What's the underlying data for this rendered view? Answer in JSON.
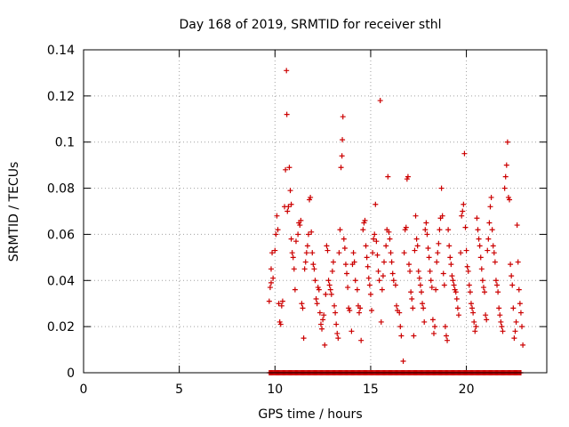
{
  "chart_data": {
    "type": "scatter",
    "title": "Day 168 of 2019, SRMTID for receiver sthl",
    "xlabel": "GPS time / hours",
    "ylabel": "SRMTID / TECUs",
    "xlim": [
      0,
      24.2
    ],
    "ylim": [
      0,
      0.14
    ],
    "xticks": [
      0,
      5,
      10,
      15,
      20
    ],
    "yticks": [
      0,
      0.02,
      0.04,
      0.06,
      0.08,
      0.1,
      0.12,
      0.14
    ],
    "xtick_labels": [
      "0",
      "5",
      "10",
      "15",
      "20"
    ],
    "ytick_labels": [
      "0",
      "0.02",
      "0.04",
      "0.06",
      "0.08",
      "0.1",
      "0.12",
      "0.14"
    ],
    "grid": true,
    "marker": "+",
    "color": "#cc0000",
    "series": [
      {
        "name": "SRMTID",
        "points": [
          [
            9.7,
            0.031
          ],
          [
            9.75,
            0.037
          ],
          [
            9.8,
            0.039
          ],
          [
            9.8,
            0.045
          ],
          [
            9.85,
            0.052
          ],
          [
            9.9,
            0.041
          ],
          [
            10.0,
            0.053
          ],
          [
            10.05,
            0.06
          ],
          [
            10.1,
            0.068
          ],
          [
            10.15,
            0.062
          ],
          [
            10.2,
            0.03
          ],
          [
            10.25,
            0.022
          ],
          [
            10.3,
            0.021
          ],
          [
            10.35,
            0.029
          ],
          [
            10.4,
            0.031
          ],
          [
            10.5,
            0.072
          ],
          [
            10.55,
            0.088
          ],
          [
            10.6,
            0.131
          ],
          [
            10.62,
            0.112
          ],
          [
            10.65,
            0.07
          ],
          [
            10.7,
            0.072
          ],
          [
            10.75,
            0.089
          ],
          [
            10.8,
            0.079
          ],
          [
            10.85,
            0.073
          ],
          [
            10.85,
            0.058
          ],
          [
            10.9,
            0.052
          ],
          [
            10.95,
            0.05
          ],
          [
            11.0,
            0.045
          ],
          [
            11.05,
            0.036
          ],
          [
            11.1,
            0.057
          ],
          [
            11.2,
            0.06
          ],
          [
            11.25,
            0.065
          ],
          [
            11.3,
            0.064
          ],
          [
            11.35,
            0.066
          ],
          [
            11.4,
            0.03
          ],
          [
            11.45,
            0.028
          ],
          [
            11.5,
            0.015
          ],
          [
            11.55,
            0.045
          ],
          [
            11.6,
            0.048
          ],
          [
            11.65,
            0.052
          ],
          [
            11.7,
            0.055
          ],
          [
            11.75,
            0.06
          ],
          [
            11.8,
            0.075
          ],
          [
            11.85,
            0.076
          ],
          [
            11.9,
            0.061
          ],
          [
            11.95,
            0.052
          ],
          [
            12.0,
            0.047
          ],
          [
            12.05,
            0.045
          ],
          [
            12.1,
            0.04
          ],
          [
            12.15,
            0.032
          ],
          [
            12.2,
            0.03
          ],
          [
            12.25,
            0.037
          ],
          [
            12.3,
            0.036
          ],
          [
            12.35,
            0.026
          ],
          [
            12.4,
            0.021
          ],
          [
            12.45,
            0.019
          ],
          [
            12.5,
            0.023
          ],
          [
            12.55,
            0.025
          ],
          [
            12.6,
            0.012
          ],
          [
            12.65,
            0.034
          ],
          [
            12.7,
            0.055
          ],
          [
            12.75,
            0.053
          ],
          [
            12.8,
            0.04
          ],
          [
            12.85,
            0.038
          ],
          [
            12.9,
            0.036
          ],
          [
            12.95,
            0.034
          ],
          [
            13.0,
            0.044
          ],
          [
            13.05,
            0.048
          ],
          [
            13.1,
            0.029
          ],
          [
            13.15,
            0.026
          ],
          [
            13.2,
            0.021
          ],
          [
            13.25,
            0.017
          ],
          [
            13.3,
            0.015
          ],
          [
            13.35,
            0.052
          ],
          [
            13.4,
            0.062
          ],
          [
            13.45,
            0.089
          ],
          [
            13.5,
            0.094
          ],
          [
            13.52,
            0.101
          ],
          [
            13.55,
            0.111
          ],
          [
            13.6,
            0.058
          ],
          [
            13.65,
            0.054
          ],
          [
            13.7,
            0.047
          ],
          [
            13.75,
            0.043
          ],
          [
            13.8,
            0.037
          ],
          [
            13.85,
            0.028
          ],
          [
            13.9,
            0.027
          ],
          [
            14.0,
            0.018
          ],
          [
            14.05,
            0.047
          ],
          [
            14.1,
            0.052
          ],
          [
            14.15,
            0.048
          ],
          [
            14.2,
            0.04
          ],
          [
            14.3,
            0.036
          ],
          [
            14.35,
            0.029
          ],
          [
            14.4,
            0.026
          ],
          [
            14.45,
            0.028
          ],
          [
            14.5,
            0.014
          ],
          [
            14.6,
            0.062
          ],
          [
            14.65,
            0.065
          ],
          [
            14.7,
            0.066
          ],
          [
            14.75,
            0.055
          ],
          [
            14.8,
            0.05
          ],
          [
            14.85,
            0.046
          ],
          [
            14.9,
            0.041
          ],
          [
            14.95,
            0.038
          ],
          [
            15.0,
            0.034
          ],
          [
            15.05,
            0.027
          ],
          [
            15.1,
            0.052
          ],
          [
            15.15,
            0.058
          ],
          [
            15.2,
            0.06
          ],
          [
            15.25,
            0.073
          ],
          [
            15.3,
            0.057
          ],
          [
            15.35,
            0.051
          ],
          [
            15.4,
            0.044
          ],
          [
            15.45,
            0.04
          ],
          [
            15.5,
            0.118
          ],
          [
            15.55,
            0.022
          ],
          [
            15.6,
            0.036
          ],
          [
            15.65,
            0.042
          ],
          [
            15.7,
            0.048
          ],
          [
            15.8,
            0.055
          ],
          [
            15.85,
            0.062
          ],
          [
            15.9,
            0.085
          ],
          [
            15.95,
            0.061
          ],
          [
            16.0,
            0.058
          ],
          [
            16.05,
            0.052
          ],
          [
            16.1,
            0.048
          ],
          [
            16.15,
            0.043
          ],
          [
            16.2,
            0.04
          ],
          [
            16.3,
            0.038
          ],
          [
            16.35,
            0.029
          ],
          [
            16.4,
            0.027
          ],
          [
            16.5,
            0.026
          ],
          [
            16.55,
            0.02
          ],
          [
            16.6,
            0.016
          ],
          [
            16.7,
            0.005
          ],
          [
            16.75,
            0.052
          ],
          [
            16.8,
            0.062
          ],
          [
            16.85,
            0.063
          ],
          [
            16.9,
            0.084
          ],
          [
            16.95,
            0.085
          ],
          [
            17.0,
            0.047
          ],
          [
            17.05,
            0.044
          ],
          [
            17.1,
            0.035
          ],
          [
            17.15,
            0.032
          ],
          [
            17.2,
            0.028
          ],
          [
            17.25,
            0.016
          ],
          [
            17.3,
            0.053
          ],
          [
            17.35,
            0.068
          ],
          [
            17.4,
            0.058
          ],
          [
            17.45,
            0.055
          ],
          [
            17.5,
            0.044
          ],
          [
            17.55,
            0.041
          ],
          [
            17.6,
            0.038
          ],
          [
            17.65,
            0.035
          ],
          [
            17.7,
            0.03
          ],
          [
            17.75,
            0.028
          ],
          [
            17.8,
            0.022
          ],
          [
            17.85,
            0.062
          ],
          [
            17.9,
            0.065
          ],
          [
            17.95,
            0.06
          ],
          [
            18.0,
            0.054
          ],
          [
            18.05,
            0.05
          ],
          [
            18.1,
            0.044
          ],
          [
            18.15,
            0.04
          ],
          [
            18.2,
            0.037
          ],
          [
            18.25,
            0.023
          ],
          [
            18.3,
            0.017
          ],
          [
            18.35,
            0.02
          ],
          [
            18.4,
            0.036
          ],
          [
            18.45,
            0.048
          ],
          [
            18.5,
            0.052
          ],
          [
            18.55,
            0.056
          ],
          [
            18.6,
            0.062
          ],
          [
            18.65,
            0.067
          ],
          [
            18.7,
            0.08
          ],
          [
            18.75,
            0.068
          ],
          [
            18.8,
            0.043
          ],
          [
            18.85,
            0.038
          ],
          [
            18.9,
            0.02
          ],
          [
            18.95,
            0.016
          ],
          [
            19.0,
            0.014
          ],
          [
            19.05,
            0.062
          ],
          [
            19.1,
            0.055
          ],
          [
            19.15,
            0.05
          ],
          [
            19.2,
            0.047
          ],
          [
            19.25,
            0.042
          ],
          [
            19.3,
            0.04
          ],
          [
            19.35,
            0.038
          ],
          [
            19.4,
            0.036
          ],
          [
            19.45,
            0.035
          ],
          [
            19.5,
            0.032
          ],
          [
            19.55,
            0.028
          ],
          [
            19.6,
            0.025
          ],
          [
            19.7,
            0.052
          ],
          [
            19.75,
            0.068
          ],
          [
            19.8,
            0.07
          ],
          [
            19.85,
            0.073
          ],
          [
            19.9,
            0.095
          ],
          [
            19.95,
            0.063
          ],
          [
            20.0,
            0.053
          ],
          [
            20.05,
            0.046
          ],
          [
            20.1,
            0.044
          ],
          [
            20.15,
            0.038
          ],
          [
            20.2,
            0.035
          ],
          [
            20.25,
            0.03
          ],
          [
            20.3,
            0.028
          ],
          [
            20.35,
            0.026
          ],
          [
            20.4,
            0.022
          ],
          [
            20.45,
            0.018
          ],
          [
            20.5,
            0.02
          ],
          [
            20.55,
            0.067
          ],
          [
            20.6,
            0.062
          ],
          [
            20.65,
            0.058
          ],
          [
            20.7,
            0.055
          ],
          [
            20.75,
            0.05
          ],
          [
            20.8,
            0.045
          ],
          [
            20.85,
            0.04
          ],
          [
            20.9,
            0.037
          ],
          [
            20.95,
            0.035
          ],
          [
            21.0,
            0.025
          ],
          [
            21.05,
            0.023
          ],
          [
            21.1,
            0.053
          ],
          [
            21.15,
            0.058
          ],
          [
            21.2,
            0.065
          ],
          [
            21.25,
            0.072
          ],
          [
            21.3,
            0.076
          ],
          [
            21.35,
            0.062
          ],
          [
            21.4,
            0.055
          ],
          [
            21.45,
            0.052
          ],
          [
            21.5,
            0.048
          ],
          [
            21.55,
            0.04
          ],
          [
            21.6,
            0.038
          ],
          [
            21.65,
            0.035
          ],
          [
            21.7,
            0.028
          ],
          [
            21.75,
            0.025
          ],
          [
            21.8,
            0.022
          ],
          [
            21.85,
            0.02
          ],
          [
            21.9,
            0.018
          ],
          [
            22.0,
            0.08
          ],
          [
            22.05,
            0.085
          ],
          [
            22.1,
            0.09
          ],
          [
            22.15,
            0.1
          ],
          [
            22.2,
            0.076
          ],
          [
            22.25,
            0.075
          ],
          [
            22.3,
            0.047
          ],
          [
            22.35,
            0.042
          ],
          [
            22.4,
            0.038
          ],
          [
            22.45,
            0.028
          ],
          [
            22.5,
            0.015
          ],
          [
            22.55,
            0.018
          ],
          [
            22.6,
            0.022
          ],
          [
            22.65,
            0.064
          ],
          [
            22.7,
            0.048
          ],
          [
            22.75,
            0.036
          ],
          [
            22.8,
            0.03
          ],
          [
            22.85,
            0.026
          ],
          [
            22.9,
            0.02
          ],
          [
            22.95,
            0.012
          ]
        ]
      }
    ],
    "zero_band": {
      "x_start": 9.7,
      "x_end": 22.9,
      "y": 0
    }
  }
}
